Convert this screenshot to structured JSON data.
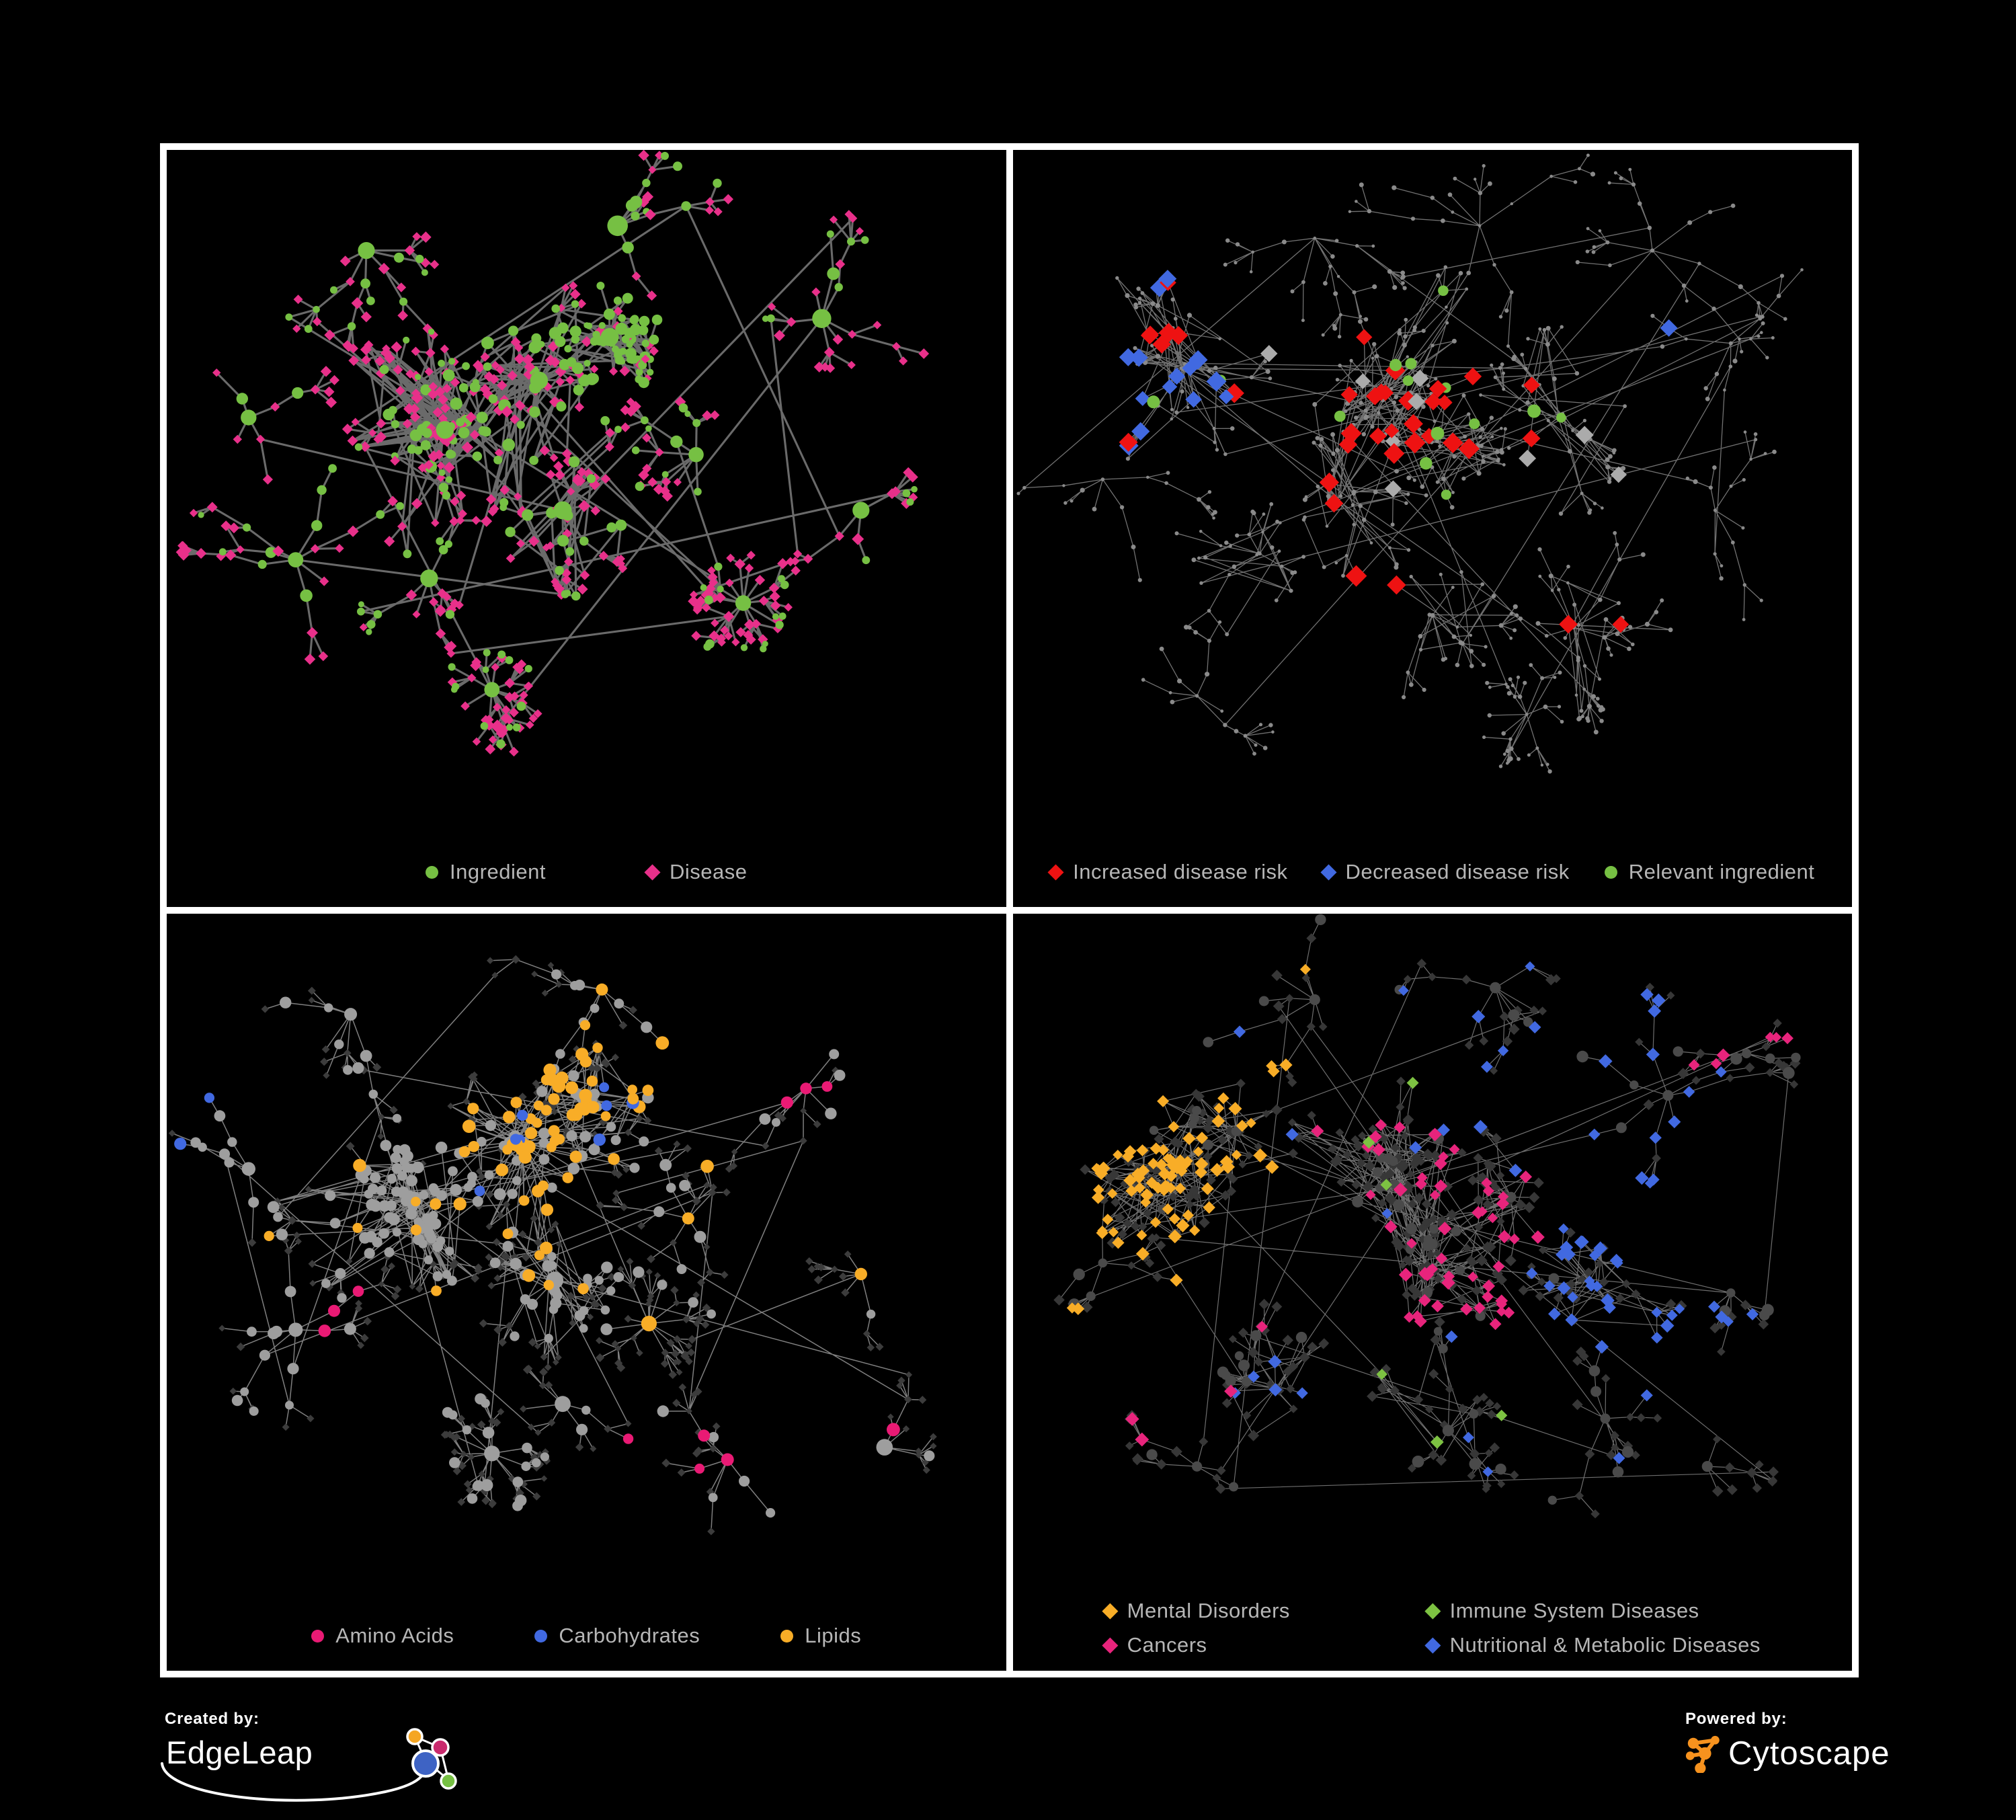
{
  "page": {
    "background": "#000000",
    "frame_color": "#ffffff"
  },
  "legend_text_color": "#b6b6b6",
  "panels": [
    {
      "id": "ingredient-disease",
      "legend": [
        {
          "label": "Ingredient",
          "shape": "circle",
          "color": "#76C043"
        },
        {
          "label": "Disease",
          "shape": "diamond",
          "color": "#E8308A"
        }
      ],
      "palette": {
        "ingredient": "#76C043",
        "disease": "#E8308A",
        "edge": "#757575"
      }
    },
    {
      "id": "disease-risk",
      "legend": [
        {
          "label": "Increased disease risk",
          "shape": "diamond",
          "color": "#EE1212"
        },
        {
          "label": "Decreased disease risk",
          "shape": "diamond",
          "color": "#4169E1"
        },
        {
          "label": "Relevant ingredient",
          "shape": "circle",
          "color": "#76C043"
        }
      ],
      "palette": {
        "increased": "#EE1212",
        "decreased": "#4169E1",
        "relevant": "#76C043",
        "other": "#ABABAB",
        "base": "#8A8A8A",
        "edge": "#8D8D8D"
      }
    },
    {
      "id": "nutrient-groups",
      "legend": [
        {
          "label": "Amino Acids",
          "shape": "circle",
          "color": "#E91A74"
        },
        {
          "label": "Carbohydrates",
          "shape": "circle",
          "color": "#4169E1"
        },
        {
          "label": "Lipids",
          "shape": "circle",
          "color": "#F8AD27"
        }
      ],
      "palette": {
        "amino": "#E91A74",
        "carb": "#4169E1",
        "lipid": "#F8AD27",
        "ingredient_base": "#9E9E9E",
        "disease_base": "#3C3C3C",
        "edge": "#A9A9A9"
      }
    },
    {
      "id": "disease-categories",
      "legend": [
        {
          "label": "Mental Disorders",
          "shape": "diamond",
          "color": "#F8AD27"
        },
        {
          "label": "Immune System Diseases",
          "shape": "diamond",
          "color": "#7DC242"
        },
        {
          "label": "Cancers",
          "shape": "diamond",
          "color": "#E8247C"
        },
        {
          "label": "Nutritional & Metabolic Diseases",
          "shape": "diamond",
          "color": "#4169E1"
        }
      ],
      "palette": {
        "mental": "#F8AD27",
        "immune": "#7DC242",
        "cancer": "#E8247C",
        "nutritional": "#4169E1",
        "disease_base": "#373737",
        "ingredient_base": "#4A4A4A",
        "edge": "#8A8A8A"
      }
    }
  ],
  "footer": {
    "created_by_label": "Created by:",
    "created_by_name": "EdgeLeap",
    "powered_by_label": "Powered by:",
    "powered_by_name": "Cytoscape",
    "cytoscape_orange": "#F6921E",
    "edgeleap_colors": {
      "orange": "#F5A623",
      "magenta": "#C92A6D",
      "blue": "#3E63C4",
      "green": "#76C043"
    }
  }
}
